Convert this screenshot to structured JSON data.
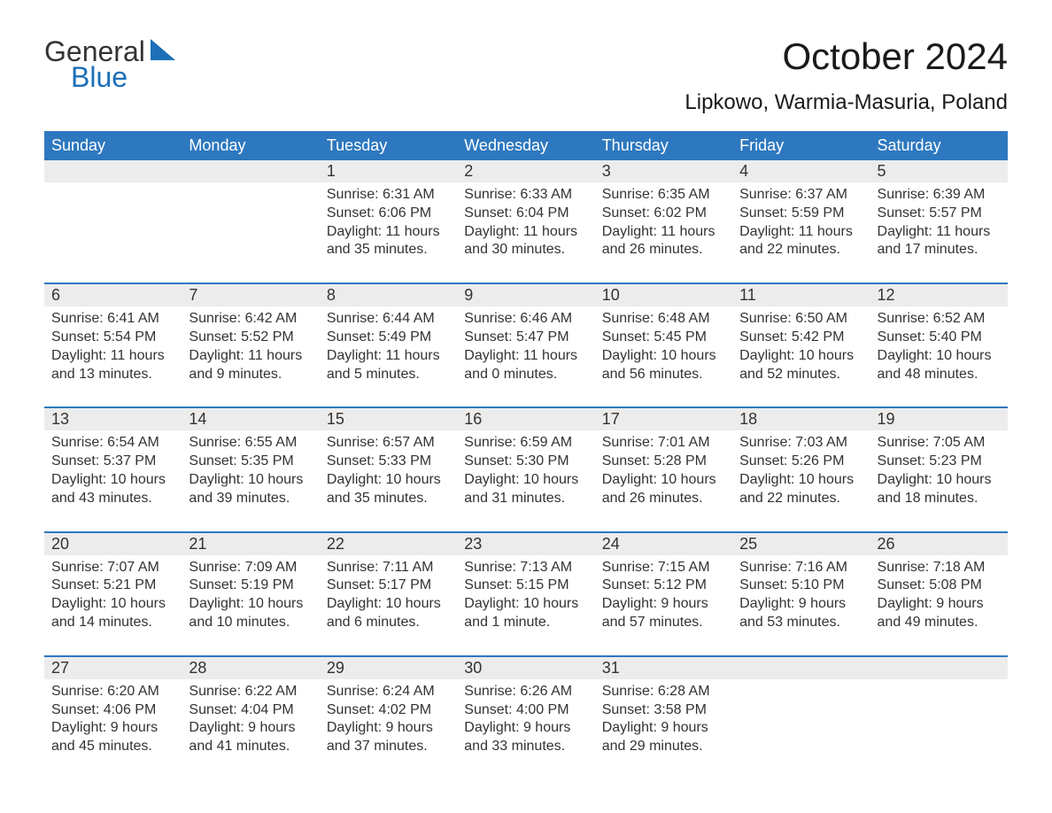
{
  "logo": {
    "word1": "General",
    "word2": "Blue"
  },
  "title": "October 2024",
  "location": "Lipkowo, Warmia-Masuria, Poland",
  "colors": {
    "header_bg": "#2d78bf",
    "header_text": "#ffffff",
    "daynum_bg": "#ececec",
    "row_border": "#2d78bf",
    "body_text": "#333333",
    "logo_blue": "#1d6fb8"
  },
  "weekdays": [
    "Sunday",
    "Monday",
    "Tuesday",
    "Wednesday",
    "Thursday",
    "Friday",
    "Saturday"
  ],
  "weeks": [
    [
      null,
      null,
      {
        "n": "1",
        "sr": "Sunrise: 6:31 AM",
        "ss": "Sunset: 6:06 PM",
        "d1": "Daylight: 11 hours",
        "d2": "and 35 minutes."
      },
      {
        "n": "2",
        "sr": "Sunrise: 6:33 AM",
        "ss": "Sunset: 6:04 PM",
        "d1": "Daylight: 11 hours",
        "d2": "and 30 minutes."
      },
      {
        "n": "3",
        "sr": "Sunrise: 6:35 AM",
        "ss": "Sunset: 6:02 PM",
        "d1": "Daylight: 11 hours",
        "d2": "and 26 minutes."
      },
      {
        "n": "4",
        "sr": "Sunrise: 6:37 AM",
        "ss": "Sunset: 5:59 PM",
        "d1": "Daylight: 11 hours",
        "d2": "and 22 minutes."
      },
      {
        "n": "5",
        "sr": "Sunrise: 6:39 AM",
        "ss": "Sunset: 5:57 PM",
        "d1": "Daylight: 11 hours",
        "d2": "and 17 minutes."
      }
    ],
    [
      {
        "n": "6",
        "sr": "Sunrise: 6:41 AM",
        "ss": "Sunset: 5:54 PM",
        "d1": "Daylight: 11 hours",
        "d2": "and 13 minutes."
      },
      {
        "n": "7",
        "sr": "Sunrise: 6:42 AM",
        "ss": "Sunset: 5:52 PM",
        "d1": "Daylight: 11 hours",
        "d2": "and 9 minutes."
      },
      {
        "n": "8",
        "sr": "Sunrise: 6:44 AM",
        "ss": "Sunset: 5:49 PM",
        "d1": "Daylight: 11 hours",
        "d2": "and 5 minutes."
      },
      {
        "n": "9",
        "sr": "Sunrise: 6:46 AM",
        "ss": "Sunset: 5:47 PM",
        "d1": "Daylight: 11 hours",
        "d2": "and 0 minutes."
      },
      {
        "n": "10",
        "sr": "Sunrise: 6:48 AM",
        "ss": "Sunset: 5:45 PM",
        "d1": "Daylight: 10 hours",
        "d2": "and 56 minutes."
      },
      {
        "n": "11",
        "sr": "Sunrise: 6:50 AM",
        "ss": "Sunset: 5:42 PM",
        "d1": "Daylight: 10 hours",
        "d2": "and 52 minutes."
      },
      {
        "n": "12",
        "sr": "Sunrise: 6:52 AM",
        "ss": "Sunset: 5:40 PM",
        "d1": "Daylight: 10 hours",
        "d2": "and 48 minutes."
      }
    ],
    [
      {
        "n": "13",
        "sr": "Sunrise: 6:54 AM",
        "ss": "Sunset: 5:37 PM",
        "d1": "Daylight: 10 hours",
        "d2": "and 43 minutes."
      },
      {
        "n": "14",
        "sr": "Sunrise: 6:55 AM",
        "ss": "Sunset: 5:35 PM",
        "d1": "Daylight: 10 hours",
        "d2": "and 39 minutes."
      },
      {
        "n": "15",
        "sr": "Sunrise: 6:57 AM",
        "ss": "Sunset: 5:33 PM",
        "d1": "Daylight: 10 hours",
        "d2": "and 35 minutes."
      },
      {
        "n": "16",
        "sr": "Sunrise: 6:59 AM",
        "ss": "Sunset: 5:30 PM",
        "d1": "Daylight: 10 hours",
        "d2": "and 31 minutes."
      },
      {
        "n": "17",
        "sr": "Sunrise: 7:01 AM",
        "ss": "Sunset: 5:28 PM",
        "d1": "Daylight: 10 hours",
        "d2": "and 26 minutes."
      },
      {
        "n": "18",
        "sr": "Sunrise: 7:03 AM",
        "ss": "Sunset: 5:26 PM",
        "d1": "Daylight: 10 hours",
        "d2": "and 22 minutes."
      },
      {
        "n": "19",
        "sr": "Sunrise: 7:05 AM",
        "ss": "Sunset: 5:23 PM",
        "d1": "Daylight: 10 hours",
        "d2": "and 18 minutes."
      }
    ],
    [
      {
        "n": "20",
        "sr": "Sunrise: 7:07 AM",
        "ss": "Sunset: 5:21 PM",
        "d1": "Daylight: 10 hours",
        "d2": "and 14 minutes."
      },
      {
        "n": "21",
        "sr": "Sunrise: 7:09 AM",
        "ss": "Sunset: 5:19 PM",
        "d1": "Daylight: 10 hours",
        "d2": "and 10 minutes."
      },
      {
        "n": "22",
        "sr": "Sunrise: 7:11 AM",
        "ss": "Sunset: 5:17 PM",
        "d1": "Daylight: 10 hours",
        "d2": "and 6 minutes."
      },
      {
        "n": "23",
        "sr": "Sunrise: 7:13 AM",
        "ss": "Sunset: 5:15 PM",
        "d1": "Daylight: 10 hours",
        "d2": "and 1 minute."
      },
      {
        "n": "24",
        "sr": "Sunrise: 7:15 AM",
        "ss": "Sunset: 5:12 PM",
        "d1": "Daylight: 9 hours",
        "d2": "and 57 minutes."
      },
      {
        "n": "25",
        "sr": "Sunrise: 7:16 AM",
        "ss": "Sunset: 5:10 PM",
        "d1": "Daylight: 9 hours",
        "d2": "and 53 minutes."
      },
      {
        "n": "26",
        "sr": "Sunrise: 7:18 AM",
        "ss": "Sunset: 5:08 PM",
        "d1": "Daylight: 9 hours",
        "d2": "and 49 minutes."
      }
    ],
    [
      {
        "n": "27",
        "sr": "Sunrise: 6:20 AM",
        "ss": "Sunset: 4:06 PM",
        "d1": "Daylight: 9 hours",
        "d2": "and 45 minutes."
      },
      {
        "n": "28",
        "sr": "Sunrise: 6:22 AM",
        "ss": "Sunset: 4:04 PM",
        "d1": "Daylight: 9 hours",
        "d2": "and 41 minutes."
      },
      {
        "n": "29",
        "sr": "Sunrise: 6:24 AM",
        "ss": "Sunset: 4:02 PM",
        "d1": "Daylight: 9 hours",
        "d2": "and 37 minutes."
      },
      {
        "n": "30",
        "sr": "Sunrise: 6:26 AM",
        "ss": "Sunset: 4:00 PM",
        "d1": "Daylight: 9 hours",
        "d2": "and 33 minutes."
      },
      {
        "n": "31",
        "sr": "Sunrise: 6:28 AM",
        "ss": "Sunset: 3:58 PM",
        "d1": "Daylight: 9 hours",
        "d2": "and 29 minutes."
      },
      null,
      null
    ]
  ]
}
